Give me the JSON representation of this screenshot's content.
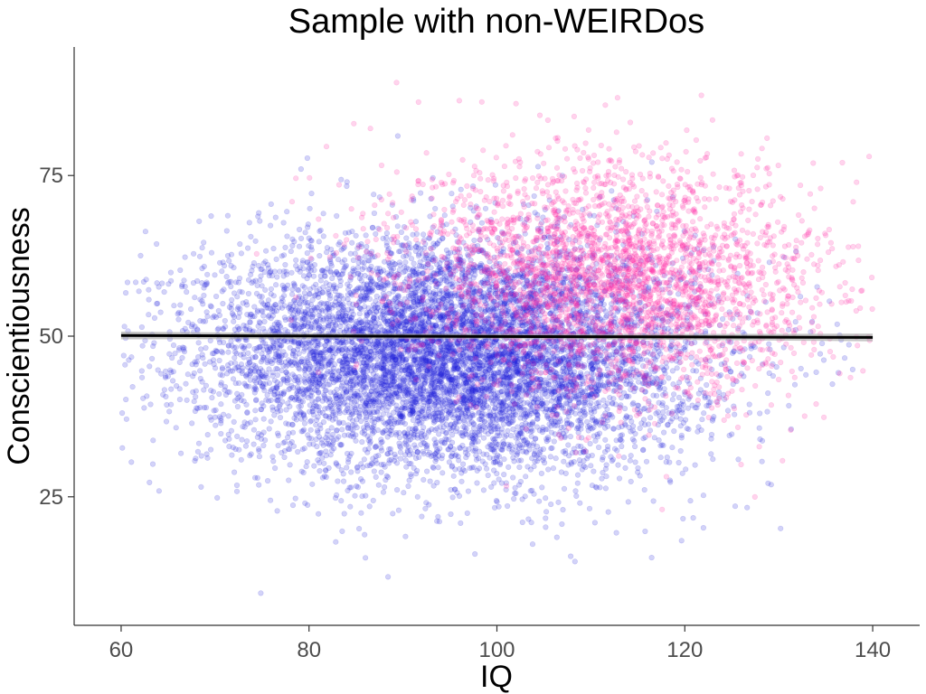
{
  "chart_data": {
    "type": "scatter",
    "title": "Sample with non-WEIRDos",
    "xlabel": "IQ",
    "ylabel": "Conscientiousness",
    "xlim": [
      55,
      145
    ],
    "ylim": [
      5,
      95
    ],
    "xticks": [
      60,
      80,
      100,
      120,
      140
    ],
    "yticks": [
      25,
      50,
      75
    ],
    "grid": false,
    "legend": "none",
    "series": [
      {
        "color": "#2222dd",
        "point_count": 8000,
        "x_mean": 95,
        "x_sd": 13,
        "y_mean": 47,
        "y_sd": 9,
        "correlation": -0.05,
        "alpha": 0.2
      },
      {
        "color": "#ff2aa6",
        "point_count": 3000,
        "x_mean": 113,
        "x_sd": 11,
        "y_mean": 59,
        "y_sd": 9,
        "correlation": -0.1,
        "alpha": 0.2
      }
    ],
    "x_clip": [
      60,
      140
    ],
    "trend_line": {
      "x": [
        60,
        140
      ],
      "y": [
        50.1,
        49.8
      ],
      "color": "#000000",
      "ci_color": "#a0a0a0"
    }
  }
}
